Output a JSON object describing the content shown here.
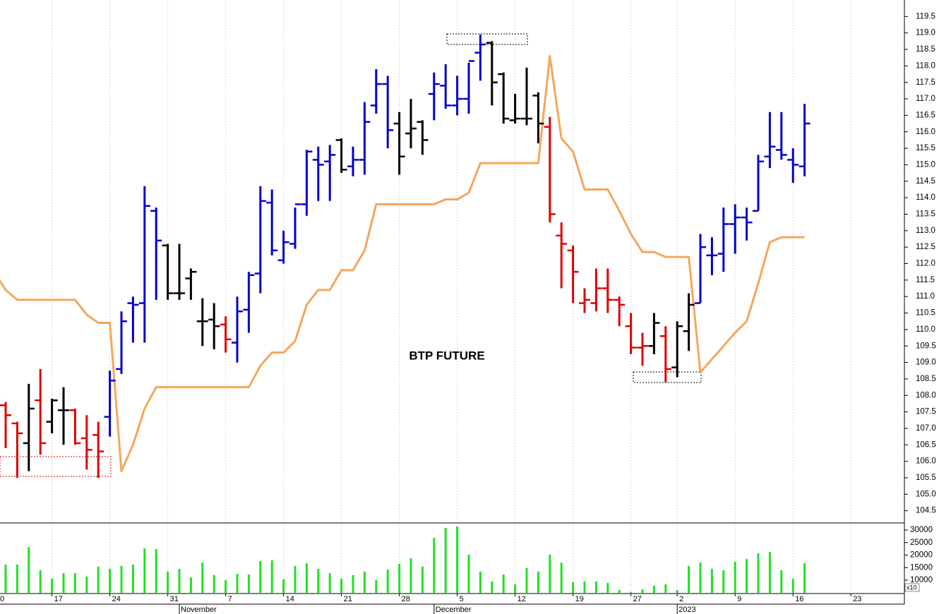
{
  "chart_data": {
    "type": "ohlc",
    "title": "BTP FUTURE",
    "categories": [
      "0",
      null,
      null,
      null,
      null,
      "17",
      null,
      null,
      null,
      null,
      "24",
      null,
      null,
      null,
      null,
      "31",
      null,
      null,
      null,
      null,
      "7",
      null,
      null,
      null,
      null,
      "14",
      null,
      null,
      null,
      null,
      "21",
      null,
      null,
      null,
      null,
      "28",
      null,
      null,
      null,
      null,
      "5",
      null,
      null,
      null,
      null,
      "12",
      null,
      null,
      null,
      null,
      "19",
      null,
      null,
      null,
      null,
      "27",
      null,
      null,
      null,
      "2",
      null,
      null,
      null,
      null,
      "9",
      null,
      null,
      null,
      null,
      "16",
      null,
      null,
      null,
      null,
      "23",
      null,
      null,
      null,
      null
    ],
    "category_groups": [
      null,
      null,
      null,
      null,
      null,
      null,
      null,
      null,
      null,
      null,
      null,
      null,
      null,
      null,
      null,
      null,
      "November",
      null,
      null,
      null,
      null,
      null,
      null,
      null,
      null,
      null,
      null,
      null,
      null,
      null,
      null,
      null,
      null,
      null,
      null,
      null,
      null,
      null,
      "December",
      null,
      null,
      null,
      null,
      null,
      null,
      null,
      null,
      null,
      null,
      null,
      null,
      null,
      null,
      null,
      null,
      null,
      null,
      null,
      null,
      "2023",
      null,
      null,
      null,
      null,
      null,
      null,
      null,
      null,
      null,
      null,
      null,
      null,
      null,
      null,
      null,
      null,
      null,
      null,
      null
    ],
    "open": [
      null,
      107.7,
      107.15,
      106.55,
      107.85,
      107.2,
      107.55,
      107.55,
      106.7,
      106.8,
      107.35,
      108.8,
      110.8,
      110.8,
      113.6,
      112.55,
      111.1,
      111.55,
      110.25,
      110.3,
      110.15,
      109.6,
      110.6,
      111.7,
      113.85,
      112.1,
      112.6,
      113.8,
      115.15,
      115.1,
      115.75,
      114.95,
      115.15,
      116.8,
      117.45,
      116.25,
      115.95,
      116.3,
      117.15,
      117.4,
      116.8,
      117.0,
      118.4,
      118.7,
      117.75,
      116.35,
      116.4,
      117.1,
      116.15,
      112.85,
      112.4,
      110.8,
      110.8,
      111.25,
      110.9,
      110.1,
      109.45,
      109.5,
      109.8,
      108.85,
      109.95,
      110.8,
      112.25,
      112.3,
      113.2,
      113.4,
      113.6,
      115.25,
      115.45,
      115.15,
      114.95,
      null,
      null,
      null,
      null,
      null,
      null,
      null,
      null
    ],
    "high": [
      null,
      107.8,
      107.2,
      108.35,
      108.8,
      107.9,
      108.25,
      107.6,
      107.4,
      107.2,
      108.75,
      110.55,
      111.0,
      114.35,
      113.7,
      112.6,
      112.6,
      111.85,
      110.95,
      110.8,
      110.4,
      111.0,
      111.75,
      114.35,
      114.25,
      113.0,
      113.7,
      115.45,
      115.55,
      115.6,
      115.8,
      115.55,
      116.9,
      117.9,
      117.7,
      116.6,
      117.0,
      116.35,
      117.8,
      118.05,
      117.7,
      118.1,
      118.95,
      118.75,
      117.8,
      117.15,
      117.95,
      117.2,
      116.45,
      113.25,
      112.55,
      111.25,
      111.85,
      111.85,
      111.0,
      110.5,
      109.9,
      110.5,
      110.1,
      110.25,
      111.1,
      112.9,
      112.8,
      113.7,
      113.8,
      113.7,
      115.3,
      116.6,
      116.6,
      115.5,
      116.85,
      null,
      null,
      null,
      null,
      null,
      null,
      null,
      null
    ],
    "low": [
      null,
      106.4,
      105.5,
      105.7,
      106.2,
      106.85,
      106.5,
      106.5,
      105.75,
      105.5,
      106.75,
      108.65,
      109.6,
      109.6,
      110.9,
      110.9,
      110.9,
      110.9,
      109.5,
      109.4,
      109.3,
      109.0,
      109.9,
      111.1,
      112.25,
      112.0,
      112.45,
      113.45,
      113.9,
      113.9,
      114.75,
      114.65,
      114.7,
      116.55,
      115.5,
      114.7,
      115.5,
      115.3,
      116.35,
      116.7,
      116.5,
      116.55,
      117.55,
      116.8,
      116.25,
      116.25,
      116.2,
      115.65,
      113.25,
      111.25,
      110.8,
      110.5,
      110.55,
      110.5,
      110.1,
      109.25,
      108.9,
      109.25,
      108.4,
      108.55,
      109.35,
      110.8,
      111.65,
      111.75,
      112.3,
      112.7,
      113.6,
      114.9,
      115.15,
      114.45,
      114.65,
      null,
      null,
      null,
      null,
      null,
      null,
      null,
      null
    ],
    "close": [
      null,
      107.4,
      106.85,
      107.6,
      106.55,
      107.85,
      107.55,
      106.55,
      106.35,
      106.3,
      108.45,
      110.25,
      110.75,
      113.75,
      112.7,
      111.1,
      111.1,
      111.75,
      110.25,
      110.1,
      109.7,
      110.55,
      111.65,
      113.9,
      112.4,
      112.65,
      113.8,
      115.4,
      115.0,
      115.3,
      114.85,
      115.15,
      116.3,
      117.45,
      116.05,
      115.25,
      116.1,
      115.75,
      117.45,
      116.8,
      117.0,
      118.15,
      118.65,
      117.5,
      116.4,
      116.4,
      116.4,
      116.25,
      113.5,
      112.6,
      111.75,
      110.9,
      111.25,
      110.9,
      110.75,
      109.45,
      109.5,
      110.2,
      108.8,
      110.1,
      110.75,
      112.5,
      112.25,
      113.2,
      113.4,
      113.25,
      115.1,
      115.55,
      115.3,
      115.0,
      116.25,
      null,
      null,
      null,
      null,
      null,
      null,
      null,
      null
    ],
    "bar_colors": [
      null,
      "#e00000",
      "#e00000",
      "#000000",
      "#e00000",
      "#000000",
      "#000000",
      "#e00000",
      "#e00000",
      "#e00000",
      "#0000cc",
      "#0000cc",
      "#0000cc",
      "#0000cc",
      "#0000cc",
      "#000000",
      "#000000",
      "#000000",
      "#000000",
      "#000000",
      "#e00000",
      "#0000cc",
      "#0000cc",
      "#0000cc",
      "#0000cc",
      "#0000cc",
      "#0000cc",
      "#0000cc",
      "#0000cc",
      "#0000cc",
      "#000000",
      "#0000cc",
      "#0000cc",
      "#0000cc",
      "#0000cc",
      "#000000",
      "#000000",
      "#000000",
      "#0000cc",
      "#0000cc",
      "#0000cc",
      "#0000cc",
      "#0000cc",
      "#000000",
      "#000000",
      "#000000",
      "#000000",
      "#000000",
      "#e00000",
      "#e00000",
      "#e00000",
      "#e00000",
      "#e00000",
      "#e00000",
      "#e00000",
      "#e00000",
      "#e00000",
      "#000000",
      "#e00000",
      "#000000",
      "#000000",
      "#0000cc",
      "#0000cc",
      "#0000cc",
      "#0000cc",
      "#0000cc",
      "#0000cc",
      "#0000cc",
      "#0000cc",
      "#0000cc",
      "#0000cc",
      null,
      null,
      null,
      null,
      null,
      null,
      null,
      null
    ],
    "line": {
      "color": "#f5a65b",
      "values": [
        111.75,
        111.2,
        110.9,
        110.9,
        110.9,
        110.9,
        110.9,
        110.9,
        110.45,
        110.2,
        110.2,
        105.7,
        106.5,
        107.6,
        108.25,
        108.25,
        108.25,
        108.25,
        108.25,
        108.25,
        108.25,
        108.25,
        108.25,
        108.9,
        109.3,
        109.3,
        109.65,
        110.75,
        111.2,
        111.2,
        111.8,
        111.8,
        112.4,
        113.8,
        113.8,
        113.8,
        113.8,
        113.8,
        113.8,
        113.95,
        113.95,
        114.15,
        115.05,
        115.05,
        115.05,
        115.05,
        115.05,
        115.05,
        118.3,
        115.8,
        115.4,
        114.25,
        114.25,
        114.25,
        113.6,
        112.9,
        112.35,
        112.35,
        112.2,
        112.2,
        112.2,
        108.7,
        109.1,
        109.5,
        109.9,
        110.25,
        111.4,
        112.65,
        112.8,
        112.8,
        112.8,
        null,
        null,
        null,
        null,
        null,
        null,
        null,
        null
      ]
    },
    "ylim": [
      104.15,
      120.0
    ],
    "yticks": [
      104.5,
      {
        "value": 105,
        "label": "105.0"
      },
      105.5,
      {
        "value": 106,
        "label": "106.0"
      },
      106.5,
      {
        "value": 107,
        "label": "107.0"
      },
      107.5,
      {
        "value": 108,
        "label": "108.0"
      },
      108.5,
      {
        "value": 109,
        "label": "109.0"
      },
      109.5,
      {
        "value": 110,
        "label": "110.0"
      },
      110.5,
      {
        "value": 111,
        "label": "111.0"
      },
      111.5,
      {
        "value": 112,
        "label": "112.0"
      },
      112.5,
      {
        "value": 113,
        "label": "113.0"
      },
      113.5,
      {
        "value": 114,
        "label": "114.0"
      },
      114.5,
      {
        "value": 115,
        "label": "115.0"
      },
      115.5,
      {
        "value": 116,
        "label": "116.0"
      },
      116.5,
      {
        "value": 117,
        "label": "117.0"
      },
      117.5,
      {
        "value": 118,
        "label": "118.0"
      },
      118.5,
      {
        "value": 119,
        "label": "119.0"
      },
      119.5
    ],
    "volume": {
      "color": "#22e022",
      "multiplier_label": "x10",
      "ylim": [
        4930,
        32535
      ],
      "yticks": [
        10000,
        15000,
        20000,
        25000,
        30000
      ],
      "values": [
        null,
        16200,
        16200,
        23250,
        13950,
        10550,
        12800,
        12800,
        11400,
        15350,
        14500,
        15650,
        16200,
        22700,
        22400,
        13400,
        14500,
        11100,
        17000,
        12000,
        10000,
        12500,
        12250,
        17600,
        17900,
        10300,
        15650,
        16750,
        14500,
        12800,
        10550,
        12000,
        13400,
        10000,
        14200,
        16500,
        18750,
        15350,
        26900,
        30850,
        31400,
        20150,
        13400,
        9450,
        12250,
        8300,
        14800,
        13400,
        20150,
        17000,
        9150,
        9450,
        9450,
        8900,
        6050,
        5300,
        6350,
        7750,
        8300,
        6050,
        15650,
        17000,
        14500,
        13950,
        17300,
        18450,
        20700,
        21250,
        13950,
        10550,
        16750,
        null,
        null,
        null,
        null,
        null,
        null,
        null,
        null
      ]
    },
    "grid": true
  }
}
